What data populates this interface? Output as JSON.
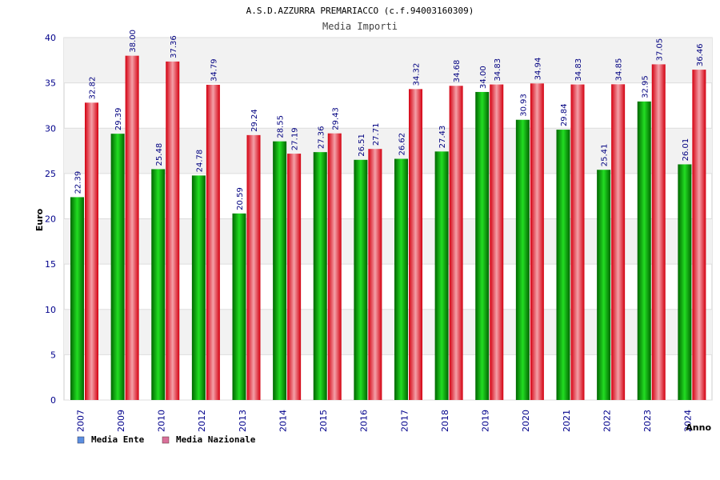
{
  "chart_data": {
    "type": "bar",
    "title": "A.S.D.AZZURRA PREMARIACCO (c.f.94003160309)",
    "subtitle": "Media Importi",
    "xlabel": "Anno",
    "ylabel": "Euro",
    "ylim": [
      0,
      40
    ],
    "yticks": [
      "0",
      "5",
      "10",
      "15",
      "20",
      "25",
      "30",
      "35",
      "40"
    ],
    "categories": [
      "2007",
      "2009",
      "2010",
      "2012",
      "2013",
      "2014",
      "2015",
      "2016",
      "2017",
      "2018",
      "2019",
      "2020",
      "2021",
      "2022",
      "2023",
      "2024"
    ],
    "series": [
      {
        "name": "Media Ente",
        "values": [
          22.39,
          29.39,
          25.48,
          24.78,
          20.59,
          28.55,
          27.36,
          26.51,
          26.62,
          27.43,
          34.0,
          30.93,
          29.84,
          25.41,
          32.95,
          26.01
        ],
        "labels": [
          "22.39",
          "29.39",
          "25.48",
          "24.78",
          "20.59",
          "28.55",
          "27.36",
          "26.51",
          "26.62",
          "27.43",
          "34.00",
          "30.93",
          "29.84",
          "25.41",
          "32.95",
          "26.01"
        ],
        "color": "#00a000"
      },
      {
        "name": "Media Nazionale",
        "values": [
          32.82,
          38.0,
          37.36,
          34.79,
          29.24,
          27.19,
          29.43,
          27.71,
          34.32,
          34.68,
          34.83,
          34.94,
          34.83,
          34.85,
          37.05,
          36.46
        ],
        "labels": [
          "32.82",
          "38.00",
          "37.36",
          "34.79",
          "29.24",
          "27.19",
          "29.43",
          "27.71",
          "34.32",
          "34.68",
          "34.83",
          "34.94",
          "34.83",
          "34.85",
          "37.05",
          "36.46"
        ],
        "color": "#e8202a"
      }
    ],
    "legend": [
      {
        "label": "Media Ente",
        "color": "#5b8fe0"
      },
      {
        "label": "Media Nazionale",
        "color": "#d9709a"
      }
    ],
    "grid": true
  }
}
